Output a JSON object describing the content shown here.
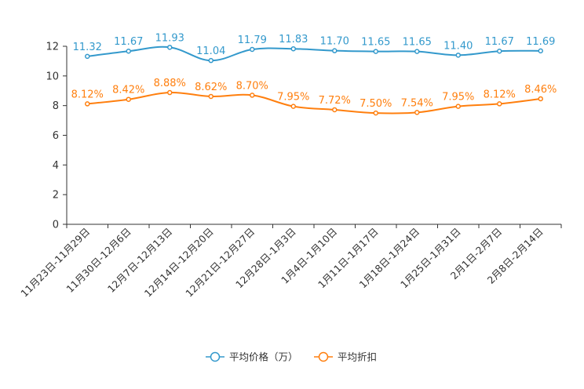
{
  "chart_data": {
    "type": "line",
    "title": "",
    "xlabel": "",
    "ylabel": "",
    "ylim": [
      0,
      12
    ],
    "yticks": [
      0,
      2,
      4,
      6,
      8,
      10,
      12
    ],
    "grid": false,
    "legend_position": "bottom-center",
    "categories": [
      "11月23日-11月29日",
      "11月30日-12月6日",
      "12月7日-12月13日",
      "12月14日-12月20日",
      "12月21日-12月27日",
      "12月28日-1月3日",
      "1月4日-1月10日",
      "1月11日-1月17日",
      "1月18日-1月24日",
      "1月25日-1月31日",
      "2月1日-2月7日",
      "2月8日-2月14日"
    ],
    "series": [
      {
        "name": "平均价格（万）",
        "color": "#3399cc",
        "values": [
          11.32,
          11.67,
          11.93,
          11.04,
          11.79,
          11.83,
          11.7,
          11.65,
          11.65,
          11.4,
          11.67,
          11.69
        ],
        "labels": [
          "11.32",
          "11.67",
          "11.93",
          "11.04",
          "11.79",
          "11.83",
          "11.70",
          "11.65",
          "11.65",
          "11.40",
          "11.67",
          "11.69"
        ]
      },
      {
        "name": "平均折扣",
        "color": "#ff7f0e",
        "values": [
          8.12,
          8.42,
          8.88,
          8.62,
          8.7,
          7.95,
          7.72,
          7.5,
          7.54,
          7.95,
          8.12,
          8.46
        ],
        "labels": [
          "8.12%",
          "8.42%",
          "8.88%",
          "8.62%",
          "8.70%",
          "7.95%",
          "7.72%",
          "7.50%",
          "7.54%",
          "7.95%",
          "8.12%",
          "8.46%"
        ]
      }
    ]
  }
}
